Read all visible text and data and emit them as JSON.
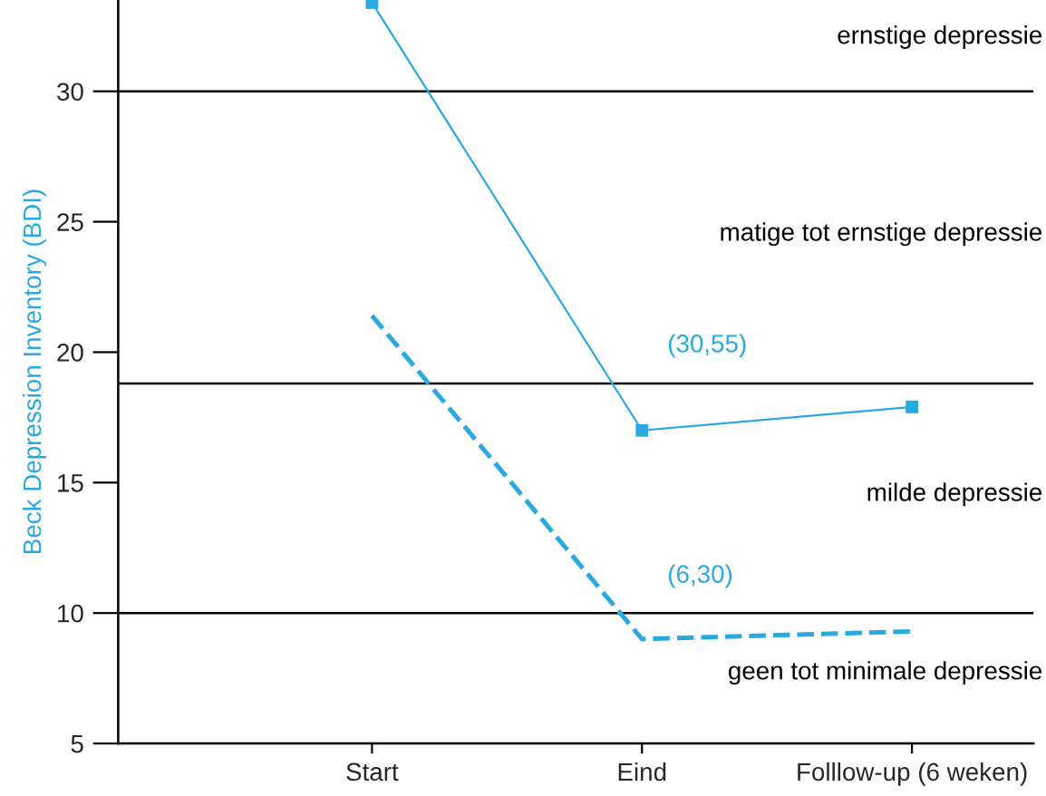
{
  "chart_data": {
    "type": "line",
    "ylabel": "Beck Depression Inventory (BDI)",
    "categories": [
      "Start",
      "Eind",
      "Folllow-up (6 weken)"
    ],
    "series": [
      {
        "color": "#29a9e0",
        "values": [
          33.4,
          17.0,
          17.9
        ],
        "marker": "square",
        "line_style": "solid"
      },
      {
        "color": "#29a9e0",
        "values": [
          21.4,
          9.0,
          9.3
        ],
        "marker": "none",
        "line_style": "dashed"
      }
    ],
    "ylim": [
      5,
      33.5
    ],
    "yticks": [
      5,
      10,
      15,
      20,
      25,
      30
    ],
    "ref_lines": [
      {
        "axis": "y",
        "value": 30,
        "color": "#000000"
      },
      {
        "axis": "y",
        "value": 18.8,
        "color": "#000000"
      },
      {
        "axis": "y",
        "value": 10,
        "color": "#000000"
      }
    ],
    "annotations": [
      "ernstige depressie",
      "matige tot ernstige depressie",
      "milde depressie",
      "geen tot minimale depressie",
      "(30,55)",
      "(6,30)"
    ],
    "grid": false,
    "legend": false
  }
}
